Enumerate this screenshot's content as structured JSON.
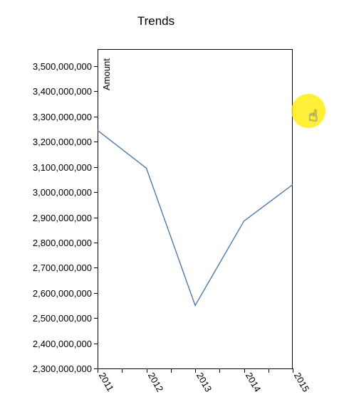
{
  "chart_data": {
    "type": "line",
    "title": "Trends",
    "xlabel": "",
    "ylabel": "Amount",
    "x": [
      "2011",
      "2012",
      "2013",
      "2014",
      "2015"
    ],
    "series": [
      {
        "values": [
          3245000000,
          3095000000,
          2550000000,
          2885000000,
          3030000000
        ],
        "color": "#4e79a7"
      }
    ],
    "ylim": [
      2300000000,
      3500000000
    ],
    "yticks": [
      2300000000,
      2400000000,
      2500000000,
      2600000000,
      2700000000,
      2800000000,
      2900000000,
      3000000000,
      3100000000,
      3200000000,
      3300000000,
      3400000000,
      3500000000
    ],
    "grid": false,
    "legend": "none"
  },
  "cursor": {
    "icon": "hand-pointer-icon",
    "glyph": "☝",
    "highlight_color": "#ffeb00"
  }
}
